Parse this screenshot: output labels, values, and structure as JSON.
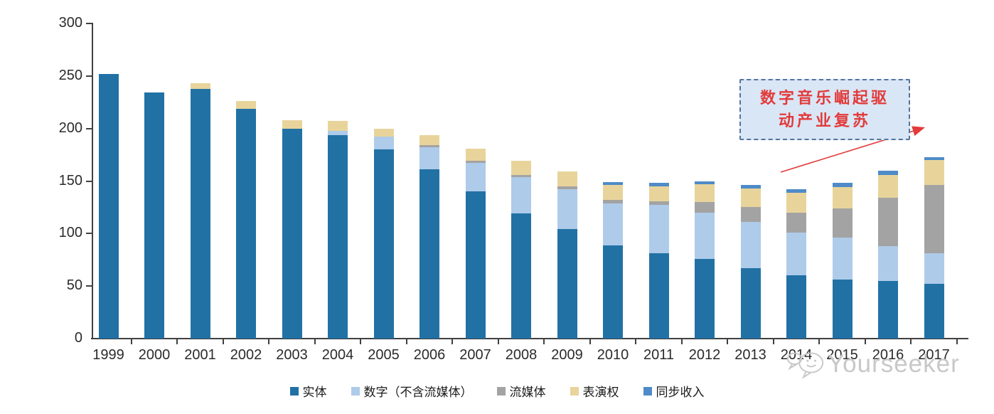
{
  "chart_data": {
    "type": "bar",
    "stacked": true,
    "title": "",
    "xlabel": "",
    "ylabel": "",
    "ylim": [
      0,
      300
    ],
    "ytick_step": 50,
    "ytick_labels": [
      "0",
      "50",
      "100",
      "150",
      "200",
      "250",
      "300"
    ],
    "grid": false,
    "legend_position": "bottom",
    "categories": [
      "1999",
      "2000",
      "2001",
      "2002",
      "2003",
      "2004",
      "2005",
      "2006",
      "2007",
      "2008",
      "2009",
      "2010",
      "2011",
      "2012",
      "2013",
      "2014",
      "2015",
      "2016",
      "2017"
    ],
    "series": [
      {
        "name": "实体",
        "color": "#2171A5",
        "values": [
          252,
          234,
          238,
          219,
          200,
          194,
          180,
          161,
          140,
          119,
          104,
          89,
          81,
          76,
          67,
          60,
          56,
          55,
          52
        ]
      },
      {
        "name": "数字（不含流媒体）",
        "color": "#AECBE9",
        "values": [
          0,
          0,
          0,
          0,
          0,
          4,
          12,
          21,
          27,
          35,
          38,
          40,
          46,
          44,
          44,
          41,
          40,
          33,
          29
        ]
      },
      {
        "name": "流媒体",
        "color": "#A3A3A3",
        "values": [
          0,
          0,
          0,
          0,
          0,
          0,
          0,
          2,
          2,
          2,
          3,
          3,
          4,
          10,
          14,
          19,
          28,
          46,
          65
        ]
      },
      {
        "name": "表演权",
        "color": "#E8D49B",
        "values": [
          0,
          0,
          5,
          7,
          8,
          9,
          8,
          10,
          12,
          13,
          14,
          14,
          14,
          17,
          18,
          19,
          20,
          22,
          24
        ]
      },
      {
        "name": "同步收入",
        "color": "#4E8BC8",
        "values": [
          0,
          0,
          0,
          0,
          0,
          0,
          0,
          0,
          0,
          0,
          0,
          3,
          3,
          3,
          3,
          3,
          4,
          4,
          3
        ]
      }
    ]
  },
  "annotation": {
    "line1": "数字音乐崛起驱",
    "line2": "动产业复苏",
    "text_color": "#E23B3B",
    "box_fill": "#D9E6F5",
    "box_border": "#54749E",
    "arrow_color": "#E23B3B"
  },
  "watermark": {
    "text": "Yourseeker",
    "color": "#C8C8C8"
  }
}
